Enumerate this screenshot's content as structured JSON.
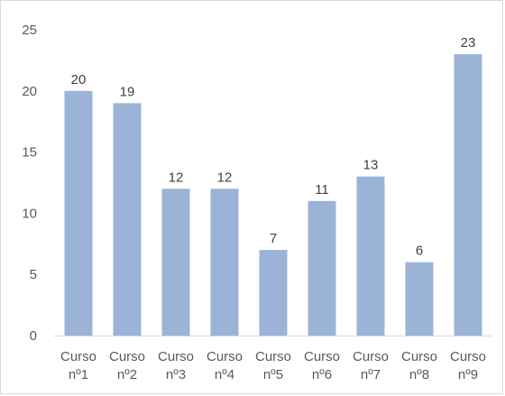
{
  "chart_data": {
    "type": "bar",
    "categories": [
      [
        "Curso",
        "nº1"
      ],
      [
        "Curso",
        "nº2"
      ],
      [
        "Curso",
        "nº3"
      ],
      [
        "Curso",
        "nº4"
      ],
      [
        "Curso",
        "nº5"
      ],
      [
        "Curso",
        "nº6"
      ],
      [
        "Curso",
        "nº7"
      ],
      [
        "Curso",
        "nº8"
      ],
      [
        "Curso",
        "nº9"
      ]
    ],
    "values": [
      20,
      19,
      12,
      12,
      7,
      11,
      13,
      6,
      23
    ],
    "data_labels": [
      "20",
      "19",
      "12",
      "12",
      "7",
      "11",
      "13",
      "6",
      "23"
    ],
    "y_ticks": [
      "0",
      "5",
      "10",
      "15",
      "20",
      "25"
    ],
    "ylim": [
      0,
      25
    ],
    "grid": false,
    "legend": "none",
    "bar_color": "#9bb3d6"
  }
}
